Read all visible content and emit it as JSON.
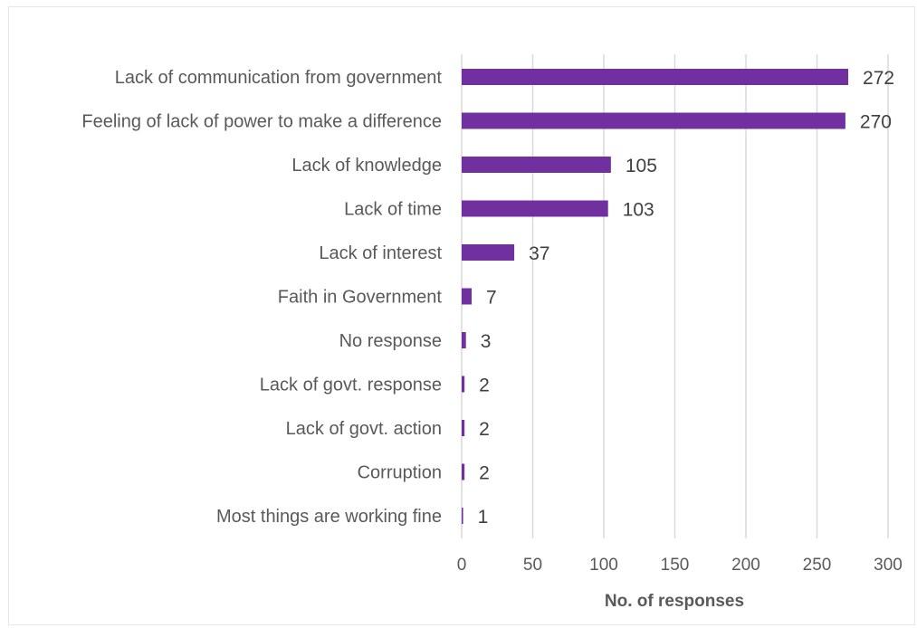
{
  "chart_data": {
    "type": "bar",
    "orientation": "horizontal",
    "title": "",
    "xlabel": "No. of responses",
    "ylabel": "",
    "categories": [
      "Lack of communication from government",
      "Feeling of lack of power to make a difference",
      "Lack of knowledge",
      "Lack of time",
      "Lack of interest",
      "Faith in Government",
      "No response",
      "Lack of govt. response",
      "Lack of govt. action",
      "Corruption",
      "Most things are working fine"
    ],
    "values": [
      272,
      270,
      105,
      103,
      37,
      7,
      3,
      2,
      2,
      2,
      1
    ],
    "xlim": [
      0,
      300
    ],
    "xticks": [
      0,
      50,
      100,
      150,
      200,
      250,
      300
    ],
    "grid": true,
    "data_labels": true,
    "legend": "none",
    "colors": {
      "bar": "#7030a0",
      "grid": "#d9d9d9"
    }
  }
}
